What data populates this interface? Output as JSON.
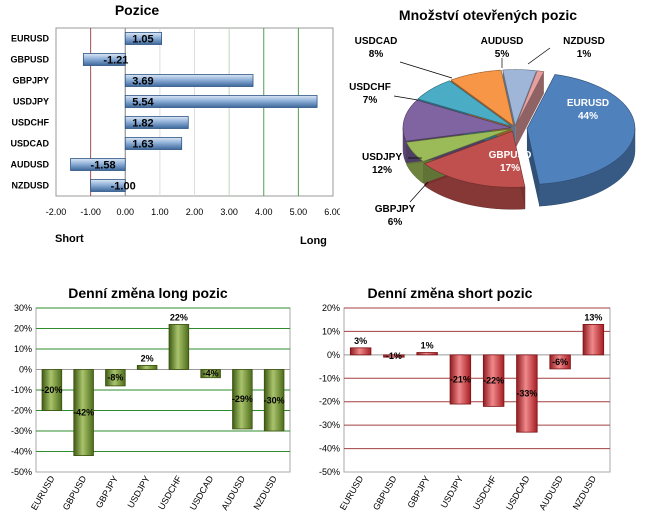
{
  "chart_data": [
    {
      "type": "bar",
      "orientation": "horizontal",
      "title": "Pozice",
      "categories": [
        "EURUSD",
        "GBPUSD",
        "GBPJPY",
        "USDJPY",
        "USDCHF",
        "USDCAD",
        "AUDUSD",
        "NZDUSD"
      ],
      "values": [
        1.05,
        -1.21,
        3.69,
        5.54,
        1.82,
        1.63,
        -1.58,
        -1.0
      ],
      "value_labels": [
        "1.05",
        "-1.21",
        "3.69",
        "5.54",
        "1.82",
        "1.63",
        "-1.58",
        "-1.00"
      ],
      "xlim": [
        -2,
        6
      ],
      "xticks": [
        "-2.00",
        "-1.00",
        "0.00",
        "1.00",
        "2.00",
        "3.00",
        "4.00",
        "5.00",
        "6.00"
      ],
      "xtick_values": [
        -2,
        -1,
        0,
        1,
        2,
        3,
        4,
        5,
        6
      ],
      "left_label": "Short",
      "right_label": "Long",
      "colors": {
        "bar": "#4f81bd",
        "short_line": "#a05050",
        "long_line": "#50a050"
      }
    },
    {
      "type": "pie",
      "title": "Množství otevřených pozic",
      "labels": [
        "EURUSD",
        "GBPUSD",
        "GBPJPY",
        "USDJPY",
        "USDCHF",
        "USDCAD",
        "AUDUSD",
        "NZDUSD"
      ],
      "values": [
        44,
        17,
        6,
        12,
        7,
        8,
        5,
        1
      ],
      "value_labels": [
        "44%",
        "17%",
        "6%",
        "12%",
        "7%",
        "8%",
        "5%",
        "1%"
      ],
      "colors": [
        "#4f81bd",
        "#c0504d",
        "#9bbb59",
        "#8064a2",
        "#4bacc6",
        "#f79646",
        "#9fb6d9",
        "#e6a0a0"
      ]
    },
    {
      "type": "bar",
      "title": "Denní změna long pozic",
      "categories": [
        "EURUSD",
        "GBPUSD",
        "GBPJPY",
        "USDJPY",
        "USDCHF",
        "USDCAD",
        "AUDUSD",
        "NZDUSD"
      ],
      "values": [
        -20,
        -42,
        -8,
        2,
        22,
        -4,
        -29,
        -30
      ],
      "value_labels": [
        "-20%",
        "-42%",
        "-8%",
        "2%",
        "22%",
        "-4%",
        "-29%",
        "-30%"
      ],
      "ylim": [
        -50,
        30
      ],
      "yticks": [
        "-50%",
        "-40%",
        "-30%",
        "-20%",
        "-10%",
        "0%",
        "10%",
        "20%",
        "30%"
      ],
      "ytick_values": [
        -50,
        -40,
        -30,
        -20,
        -10,
        0,
        10,
        20,
        30
      ],
      "colors": {
        "bar": "#6b8e23",
        "grid": "#2e8b2e"
      }
    },
    {
      "type": "bar",
      "title": "Denní změna short pozic",
      "categories": [
        "EURUSD",
        "GBPUSD",
        "GBPJPY",
        "USDJPY",
        "USDCHF",
        "USDCAD",
        "AUDUSD",
        "NZDUSD"
      ],
      "values": [
        3,
        -1,
        1,
        -21,
        -22,
        -33,
        -6,
        13
      ],
      "value_labels": [
        "3%",
        "-1%",
        "1%",
        "-21%",
        "-22%",
        "-33%",
        "-6%",
        "13%"
      ],
      "ylim": [
        -50,
        20
      ],
      "yticks": [
        "-50%",
        "-40%",
        "-30%",
        "-20%",
        "-10%",
        "0%",
        "10%",
        "20%"
      ],
      "ytick_values": [
        -50,
        -40,
        -30,
        -20,
        -10,
        0,
        10,
        20
      ],
      "colors": {
        "bar": "#c0272d",
        "grid": "#a04040"
      }
    }
  ]
}
